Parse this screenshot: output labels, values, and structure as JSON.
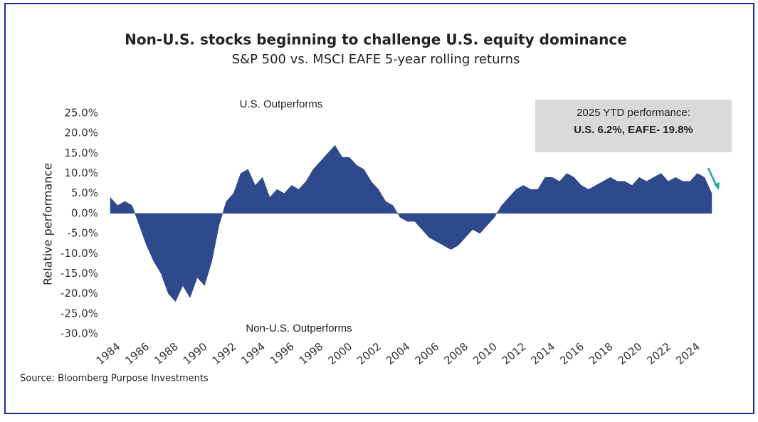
{
  "chart_data": {
    "type": "area",
    "title": "Non-U.S. stocks beginning to challenge U.S. equity dominance",
    "subtitle": "S&P 500 vs. MSCI EAFE 5-year rolling returns",
    "y_label": "Relative performance",
    "annotations": [
      "U.S. Outperforms",
      "Non-U.S. Outperforms"
    ],
    "callout": [
      "2025 YTD performance:",
      "U.S. 6.2%, EAFE- 19.8%"
    ],
    "source": "Source: Bloomberg Purpose Investments",
    "color": "#2f4a8c",
    "x": [
      1984,
      1984.5,
      1985,
      1985.5,
      1986,
      1986.5,
      1987,
      1987.5,
      1988,
      1988.5,
      1989,
      1989.5,
      1990,
      1990.5,
      1991,
      1991.5,
      1992,
      1992.5,
      1993,
      1993.5,
      1994,
      1994.5,
      1995,
      1995.5,
      1996,
      1996.5,
      1997,
      1997.5,
      1998,
      1998.5,
      1999,
      1999.5,
      2000,
      2000.5,
      2001,
      2001.5,
      2002,
      2002.5,
      2003,
      2003.5,
      2004,
      2004.5,
      2005,
      2005.5,
      2006,
      2006.5,
      2007,
      2007.5,
      2008,
      2008.5,
      2009,
      2009.5,
      2010,
      2010.5,
      2011,
      2011.5,
      2012,
      2012.5,
      2013,
      2013.5,
      2014,
      2014.5,
      2015,
      2015.5,
      2016,
      2016.5,
      2017,
      2017.5,
      2018,
      2018.5,
      2019,
      2019.5,
      2020,
      2020.5,
      2021,
      2021.5,
      2022,
      2022.5,
      2023,
      2023.5,
      2024,
      2024.5,
      2025,
      2025.5
    ],
    "values": [
      4,
      2,
      3,
      2,
      -3,
      -8,
      -12,
      -15,
      -20,
      -22,
      -18,
      -21,
      -16,
      -18,
      -12,
      -3,
      3,
      5,
      10,
      11,
      7,
      9,
      4,
      6,
      5,
      7,
      6,
      8,
      11,
      13,
      15,
      17,
      14,
      14,
      12,
      11,
      8,
      6,
      3,
      2,
      -1,
      -2,
      -2,
      -4,
      -6,
      -7,
      -8,
      -9,
      -8,
      -6,
      -4,
      -5,
      -3,
      -1,
      2,
      4,
      6,
      7,
      6,
      6,
      9,
      9,
      8,
      10,
      9,
      7,
      6,
      7,
      8,
      9,
      8,
      8,
      7,
      9,
      8,
      9,
      10,
      8,
      9,
      8,
      8,
      10,
      9,
      5
    ],
    "xlim": [
      1984,
      2025.5
    ],
    "xticks": [
      1984,
      1986,
      1988,
      1990,
      1992,
      1994,
      1996,
      1998,
      2000,
      2002,
      2004,
      2006,
      2008,
      2010,
      2012,
      2014,
      2016,
      2018,
      2020,
      2022,
      2024
    ],
    "ylim": [
      -30,
      25
    ],
    "yticks": [
      {
        "value": 25,
        "label": "25.0%"
      },
      {
        "value": 20,
        "label": "20.0%"
      },
      {
        "value": 15,
        "label": "15.0%"
      },
      {
        "value": 10,
        "label": "10.0%"
      },
      {
        "value": 5,
        "label": "5.0%"
      },
      {
        "value": 0,
        "label": "0.0%"
      },
      {
        "value": -5,
        "label": "-5.0%"
      },
      {
        "value": -10,
        "label": "-10.0%"
      },
      {
        "value": -15,
        "label": "-15.0%"
      },
      {
        "value": -20,
        "label": "-20.0%"
      },
      {
        "value": -25,
        "label": "-25.0%"
      },
      {
        "value": -30,
        "label": "-30.0%"
      }
    ]
  }
}
